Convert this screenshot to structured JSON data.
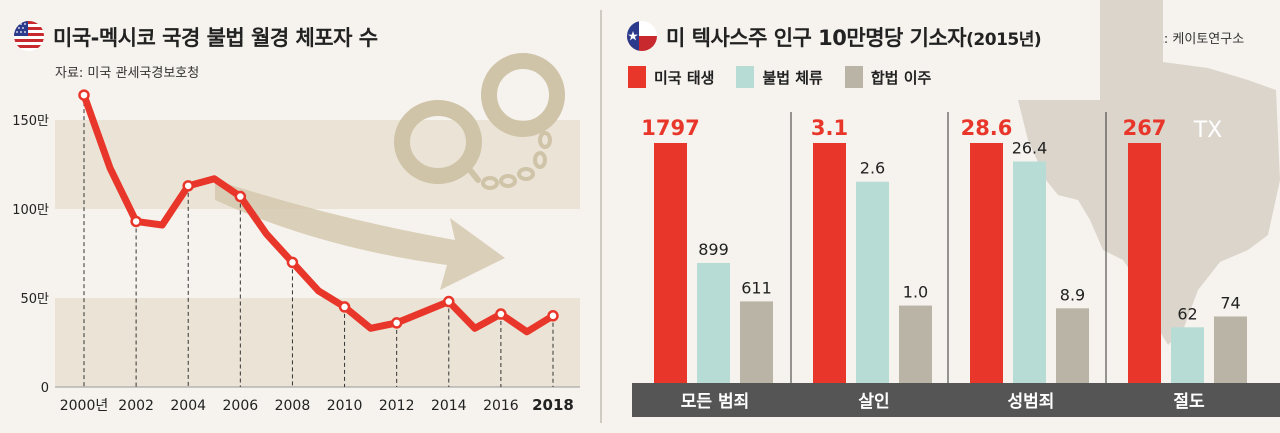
{
  "left": {
    "title": "미국-멕시코 국경 불법 월경 체포자 수",
    "source": "자료: 미국 관세국경보호청",
    "flag_icon": "us-flag-icon",
    "decor_icon": "handcuffs-icon",
    "colors": {
      "line": "#e8372a",
      "band": "#ebe4d6",
      "arrow": "#d5c8ae"
    }
  },
  "right": {
    "title": "미 텍사스주 인구 10만명당 기소자",
    "title_suffix": "(2015년)",
    "source": "자료: 케이토연구소",
    "flag_icon": "texas-flag-icon",
    "map_label": "TX",
    "colors": {
      "native": "#e8372a",
      "illegal": "#b7dcd6",
      "legal": "#b9b4a6",
      "category_bar": "#555555",
      "map": "#dbd5cc"
    }
  },
  "chart_data": [
    {
      "type": "line",
      "title": "미국-멕시코 국경 불법 월경 체포자 수",
      "x_tick_labels": [
        "2000년",
        "2002",
        "2004",
        "2006",
        "2008",
        "2010",
        "2012",
        "2014",
        "2016",
        "2018"
      ],
      "y_tick_labels": [
        "0",
        "50만",
        "100만",
        "150만"
      ],
      "ylim": [
        0,
        170
      ],
      "y_unit": "만",
      "series": [
        {
          "x": [
            2000,
            2001,
            2002,
            2003,
            2004,
            2005,
            2006,
            2007,
            2008,
            2009,
            2010,
            2011,
            2012,
            2013,
            2014,
            2015,
            2016,
            2017,
            2018
          ],
          "values": [
            164,
            123,
            93,
            91,
            113,
            117,
            107,
            86,
            70,
            54,
            45,
            33,
            36,
            42,
            48,
            33,
            41,
            31,
            40
          ],
          "marked_x": [
            2000,
            2002,
            2004,
            2006,
            2008,
            2010,
            2012,
            2014,
            2016,
            2018
          ]
        }
      ],
      "grid": false
    },
    {
      "type": "bar",
      "title": "미 텍사스주 인구 10만명당 기소자(2015년)",
      "legend": [
        "미국 태생",
        "불법 체류",
        "합법 이주"
      ],
      "legend_position": "top-left",
      "groups": [
        {
          "category": "모든 범죄",
          "values": [
            1797,
            899,
            611
          ],
          "labels": [
            "1797",
            "899",
            "611"
          ]
        },
        {
          "category": "살인",
          "values": [
            3.1,
            2.6,
            1.0
          ],
          "labels": [
            "3.1",
            "2.6",
            "1.0"
          ]
        },
        {
          "category": "성범죄",
          "values": [
            28.6,
            26.4,
            8.9
          ],
          "labels": [
            "28.6",
            "26.4",
            "8.9"
          ]
        },
        {
          "category": "절도",
          "values": [
            267,
            62,
            74
          ],
          "labels": [
            "267",
            "62",
            "74"
          ]
        }
      ],
      "grid": false
    }
  ]
}
